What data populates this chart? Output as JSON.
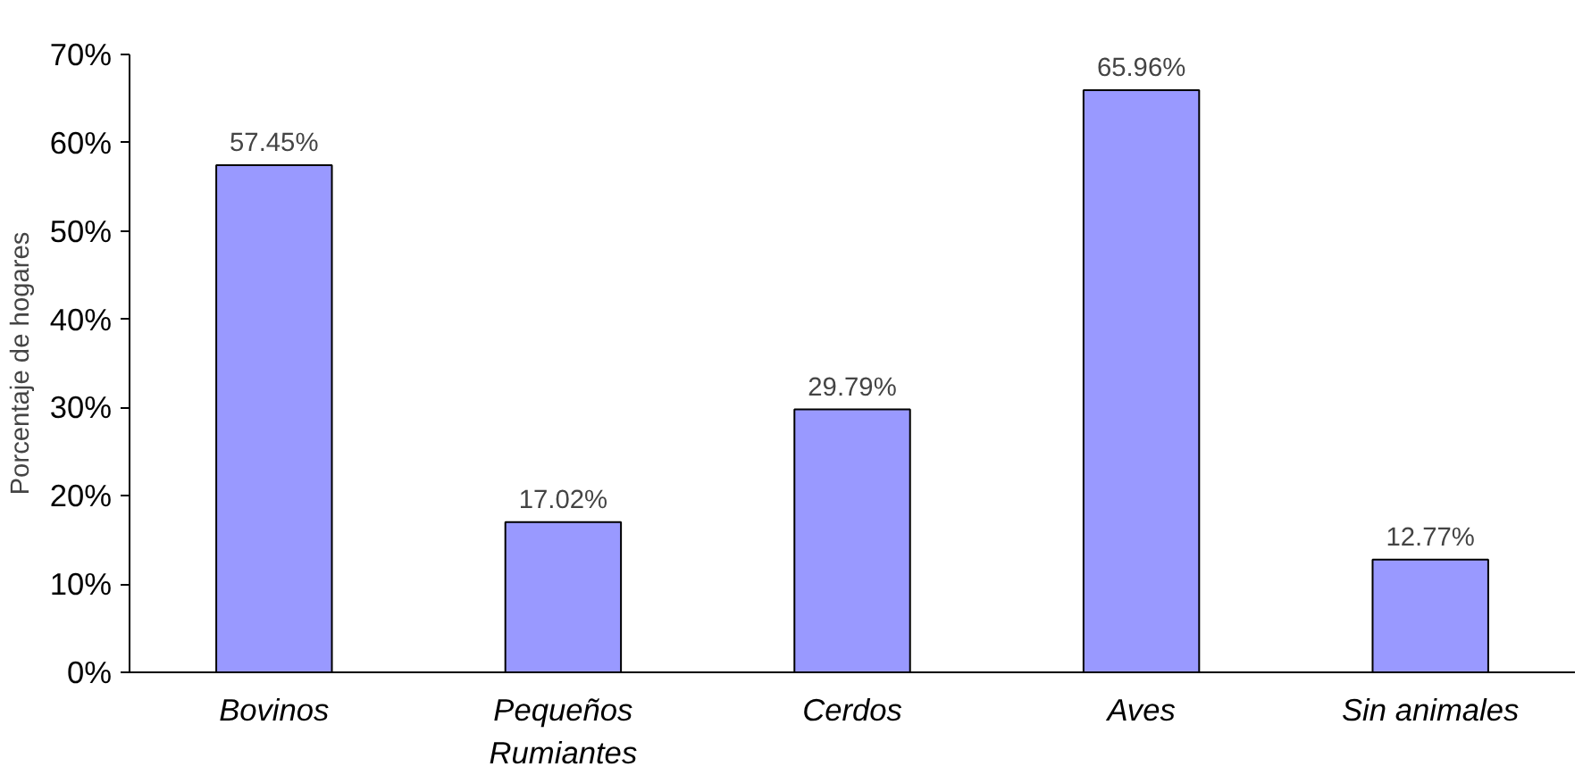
{
  "chart_data": {
    "type": "bar",
    "ylabel": "Porcentaje de hogares",
    "categories": [
      "Bovinos",
      "Pequeños\nRumiantes",
      "Cerdos",
      "Aves",
      "Sin animales"
    ],
    "values": [
      57.45,
      17.02,
      29.79,
      65.96,
      12.77
    ],
    "value_labels": [
      "57.45%",
      "17.02%",
      "29.79%",
      "65.96%",
      "12.77%"
    ],
    "color": "#9999ff",
    "ylim": [
      0,
      70
    ],
    "yticks": [
      {
        "value": 0,
        "label": "0%"
      },
      {
        "value": 10,
        "label": "10%"
      },
      {
        "value": 20,
        "label": "20%"
      },
      {
        "value": 30,
        "label": "30%"
      },
      {
        "value": 40,
        "label": "40%"
      },
      {
        "value": 50,
        "label": "50%"
      },
      {
        "value": 60,
        "label": "60%"
      },
      {
        "value": 70,
        "label": "70%"
      }
    ],
    "grid": false
  }
}
